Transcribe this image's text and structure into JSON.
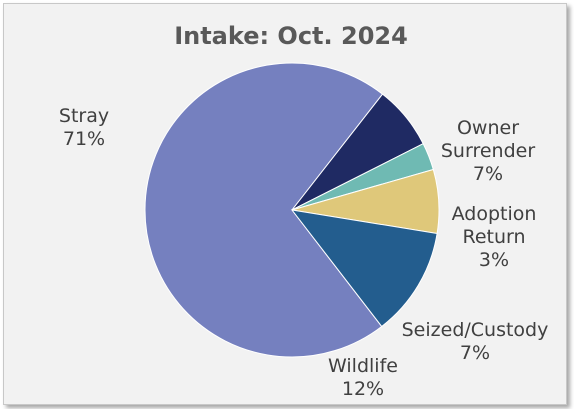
{
  "chart_data": {
    "type": "pie",
    "title": "Intake: Oct. 2024",
    "slices": [
      {
        "name": "Stray",
        "value": 71,
        "label": "71%",
        "color": "#7580bf"
      },
      {
        "name": "Owner Surrender",
        "value": 7,
        "label": "7%",
        "color": "#1f2a63"
      },
      {
        "name": "Adoption Return",
        "value": 3,
        "label": "3%",
        "color": "#6fbab3"
      },
      {
        "name": "Seized/Custody",
        "value": 7,
        "label": "7%",
        "color": "#dfc87a"
      },
      {
        "name": "Wildlife",
        "value": 12,
        "label": "12%",
        "color": "#235d8e"
      }
    ],
    "legend": "none",
    "data_labels": "outside"
  }
}
